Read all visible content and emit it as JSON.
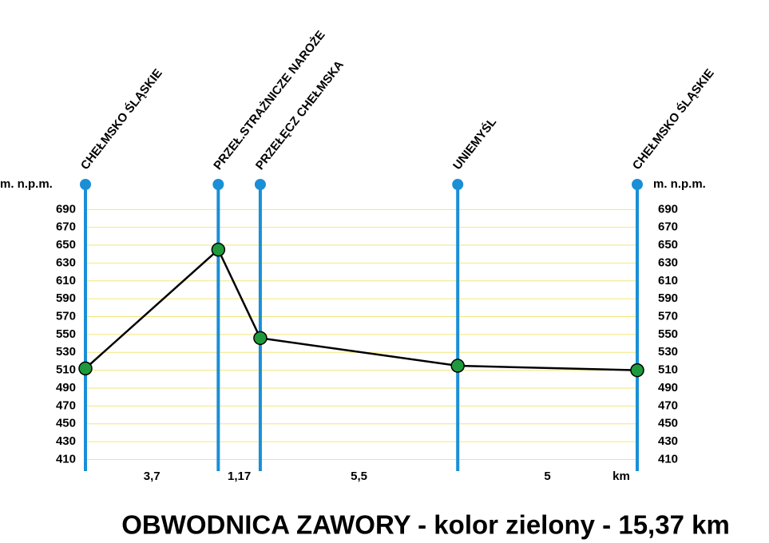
{
  "chart_data": {
    "type": "line",
    "title": "OBWODNICA ZAWORY - kolor zielony - 15,37 km",
    "y_label": "m. n.p.m.",
    "x_unit": "km",
    "x": [
      0,
      3.7,
      4.87,
      10.37,
      15.37
    ],
    "locations": [
      "CHEŁMSKO ŚLĄSKIE",
      "PRZEŁ.STRAŻNICZE NAROŻE",
      "PRZEŁĘCZ CHEŁMSKA",
      "UNIEMYŚL",
      "CHEŁMSKO ŚLĄSKIE"
    ],
    "segment_labels": [
      "3,7",
      "1,17",
      "5,5",
      "5"
    ],
    "values": [
      512,
      645,
      546,
      515,
      510
    ],
    "color": "#1e9a3c",
    "line_color": "#000000",
    "marker_line_color": "#1a8fd6",
    "grid_color": "#f3e67a",
    "xlim": [
      0,
      15.37
    ],
    "ylim": [
      397,
      718
    ],
    "yticks": [
      410,
      430,
      450,
      470,
      490,
      510,
      530,
      550,
      570,
      590,
      610,
      630,
      650,
      670,
      690
    ],
    "grid": true
  }
}
